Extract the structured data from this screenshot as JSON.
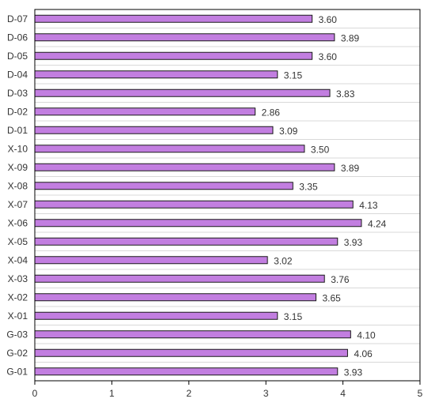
{
  "chart_data": {
    "type": "bar",
    "orientation": "horizontal",
    "title": "",
    "xlabel": "",
    "ylabel": "",
    "categories": [
      "D-07",
      "D-06",
      "D-05",
      "D-04",
      "D-03",
      "D-02",
      "D-01",
      "X-10",
      "X-09",
      "X-08",
      "X-07",
      "X-06",
      "X-05",
      "X-04",
      "X-03",
      "X-02",
      "X-01",
      "G-03",
      "G-02",
      "G-01"
    ],
    "values": [
      3.6,
      3.89,
      3.6,
      3.15,
      3.83,
      2.86,
      3.09,
      3.5,
      3.89,
      3.35,
      4.13,
      4.24,
      3.93,
      3.02,
      3.76,
      3.65,
      3.15,
      4.1,
      4.06,
      3.93
    ],
    "value_labels": [
      "3.60",
      "3.89",
      "3.60",
      "3.15",
      "3.83",
      "2.86",
      "3.09",
      "3.50",
      "3.89",
      "3.35",
      "4.13",
      "4.24",
      "3.93",
      "3.02",
      "3.76",
      "3.65",
      "3.15",
      "4.10",
      "4.06",
      "3.93"
    ],
    "xlim": [
      0,
      5
    ],
    "xticks": [
      "0",
      "1",
      "2",
      "3",
      "4",
      "5"
    ],
    "grid": true,
    "legend": "none",
    "colors": {
      "bar_fill": "#c27ee0",
      "bar_stroke": "#1a1a1a",
      "grid": "#d9d9d9",
      "axis": "#000000",
      "text": "#333333"
    }
  }
}
